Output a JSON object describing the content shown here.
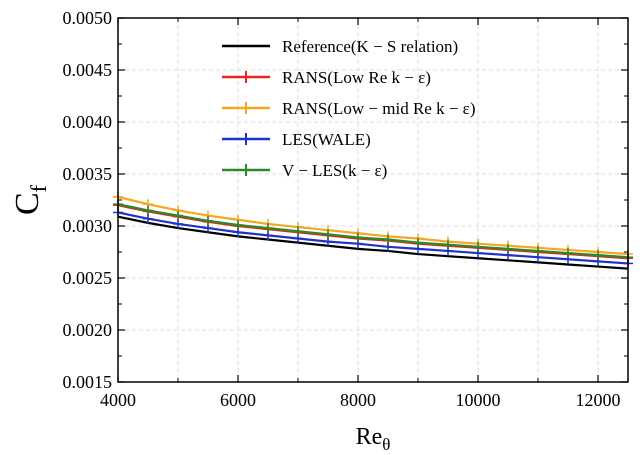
{
  "chart_data": {
    "type": "line",
    "title": "",
    "xlabel": {
      "main": "Re",
      "sub": "θ"
    },
    "ylabel": {
      "main": "C",
      "sub": "f"
    },
    "xlim": [
      4000,
      12500
    ],
    "ylim": [
      0.0015,
      0.005
    ],
    "xticks": [
      4000,
      6000,
      8000,
      10000,
      12000
    ],
    "xtick_labels": [
      "4000",
      "6000",
      "8000",
      "10000",
      "12000"
    ],
    "yticks": [
      0.0015,
      0.002,
      0.0025,
      0.003,
      0.0035,
      0.004,
      0.0045,
      0.005
    ],
    "ytick_labels": [
      "0.0015",
      "0.0020",
      "0.0025",
      "0.0030",
      "0.0035",
      "0.0040",
      "0.0045",
      "0.0050"
    ],
    "grid": true,
    "legend_position": "top-right",
    "x": [
      4000,
      4500,
      5000,
      5500,
      6000,
      6500,
      7000,
      7500,
      8000,
      8500,
      9000,
      9500,
      10000,
      10500,
      11000,
      11500,
      12000,
      12500
    ],
    "series": [
      {
        "name": "Reference(K − S relation)",
        "color": "#000000",
        "marker": "none",
        "values": [
          0.00309,
          0.00303,
          0.00298,
          0.00294,
          0.0029,
          0.00287,
          0.00284,
          0.00281,
          0.00278,
          0.00276,
          0.00273,
          0.00271,
          0.00269,
          0.00267,
          0.00265,
          0.00263,
          0.00261,
          0.00259
        ]
      },
      {
        "name": "RANS(Low Re k − ε)",
        "color": "#e8251f",
        "marker": "plus",
        "values": [
          0.0032,
          0.00314,
          0.00309,
          0.00304,
          0.003,
          0.00297,
          0.00294,
          0.00291,
          0.00288,
          0.00286,
          0.00283,
          0.00281,
          0.00279,
          0.00277,
          0.00275,
          0.00273,
          0.00271,
          0.00269
        ]
      },
      {
        "name": "RANS(Low − mid Re k − ε)",
        "color": "#f5a623",
        "marker": "plus",
        "values": [
          0.00328,
          0.00321,
          0.00315,
          0.0031,
          0.00306,
          0.00302,
          0.00299,
          0.00296,
          0.00293,
          0.0029,
          0.00288,
          0.00285,
          0.00283,
          0.00281,
          0.00279,
          0.00277,
          0.00275,
          0.00273
        ]
      },
      {
        "name": "LES(WALE)",
        "color": "#1f33c9",
        "marker": "plus",
        "values": [
          0.00313,
          0.00307,
          0.00302,
          0.00298,
          0.00294,
          0.00291,
          0.00288,
          0.00285,
          0.00283,
          0.0028,
          0.00278,
          0.00276,
          0.00274,
          0.00272,
          0.0027,
          0.00268,
          0.00266,
          0.00264
        ]
      },
      {
        "name": "V − LES(k − ε)",
        "color": "#2a8a2a",
        "marker": "plus",
        "values": [
          0.00321,
          0.00315,
          0.0031,
          0.00305,
          0.00301,
          0.00298,
          0.00295,
          0.00292,
          0.00289,
          0.00287,
          0.00284,
          0.00282,
          0.0028,
          0.00278,
          0.00276,
          0.00274,
          0.00272,
          0.0027
        ]
      }
    ]
  }
}
